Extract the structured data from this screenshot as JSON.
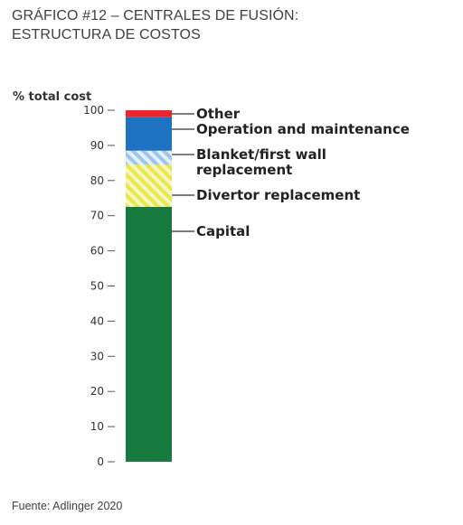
{
  "header": {
    "title_line1": "GRÁFICO #12 – CENTRALES DE FUSIÓN:",
    "title_line2": "ESTRUCTURA DE COSTOS"
  },
  "footer": {
    "source": "Fuente: Adlinger 2020"
  },
  "chart_data": {
    "type": "bar",
    "stacked": true,
    "ylabel": "% total cost",
    "ylim": [
      0,
      100
    ],
    "ticks": [
      0,
      10,
      20,
      30,
      40,
      50,
      60,
      70,
      80,
      90,
      100
    ],
    "segments": [
      {
        "name": "Capital",
        "lines": [
          "Capital"
        ],
        "start": 0,
        "end": 72.5,
        "color": "#177a3f",
        "pattern": "solid"
      },
      {
        "name": "Divertor replacement",
        "lines": [
          "Divertor replacement"
        ],
        "start": 72.5,
        "end": 84.5,
        "color": "#e8e84a",
        "pattern": "hatch"
      },
      {
        "name": "Blanket/first wall replacement",
        "lines": [
          "Blanket/first wall",
          "replacement"
        ],
        "start": 84.5,
        "end": 88.5,
        "color": "#9cc6ec",
        "pattern": "hatch"
      },
      {
        "name": "Operation and maintenance",
        "lines": [
          "Operation and maintenance"
        ],
        "start": 88.5,
        "end": 98,
        "color": "#1d72c2",
        "pattern": "solid"
      },
      {
        "name": "Other",
        "lines": [
          "Other"
        ],
        "start": 98,
        "end": 100,
        "color": "#e8262b",
        "pattern": "solid"
      }
    ]
  }
}
